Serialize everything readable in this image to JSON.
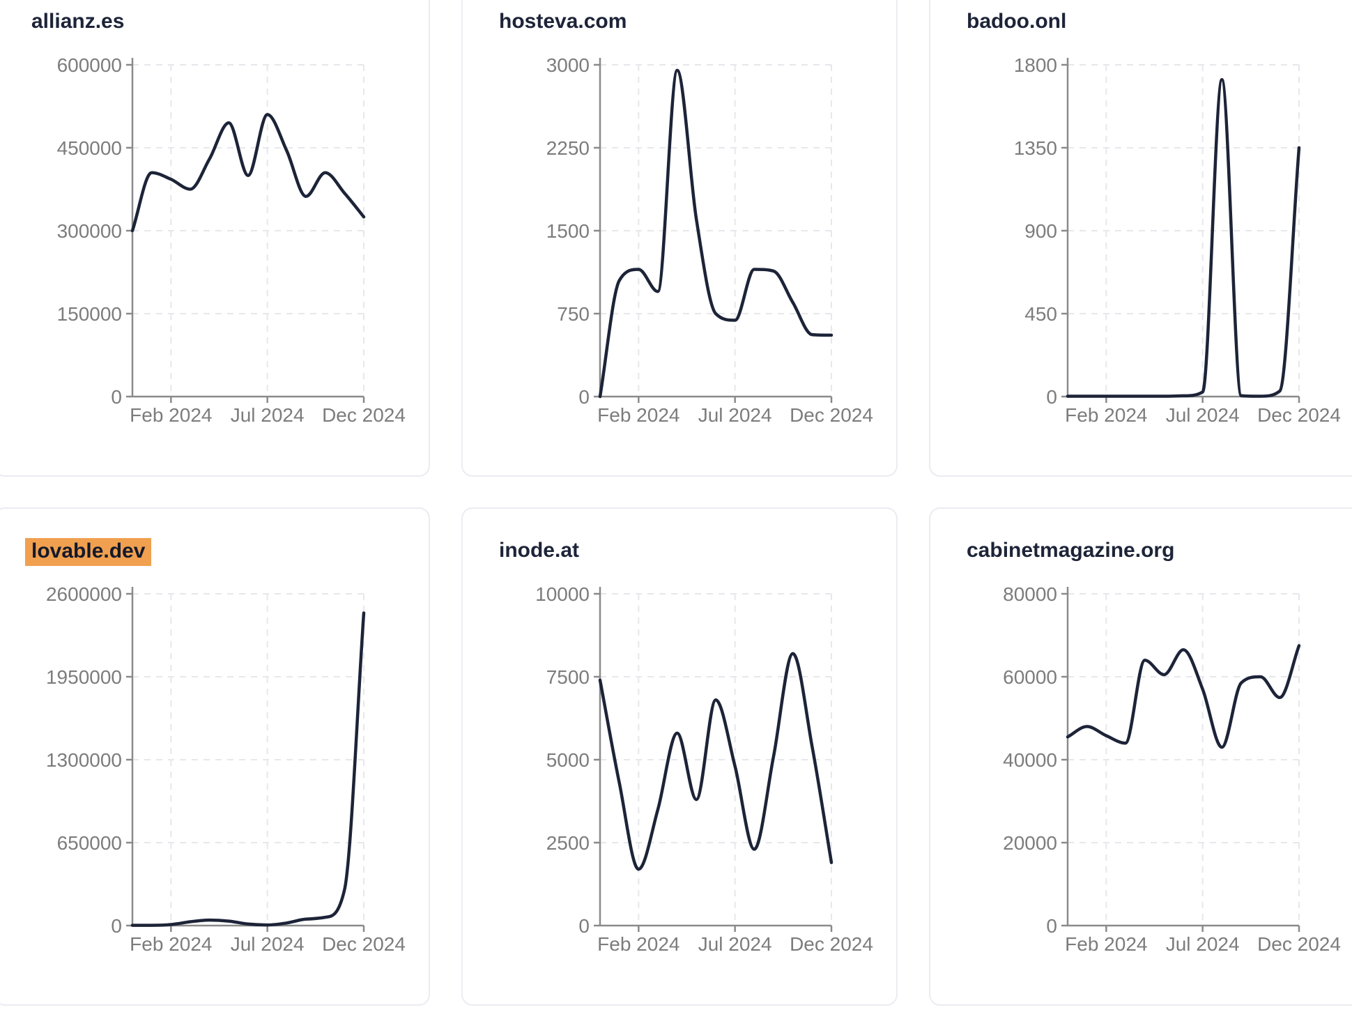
{
  "page": {
    "background": "#ffffff",
    "card_border_color": "#eaecf1",
    "line_color": "#1d2438",
    "title_color": "#1d2438",
    "tick_label_color": "#7c7c7c",
    "axis_color": "#8a8a8a",
    "grid_color": "#e7e7ec",
    "highlight_color": "#f0a04f",
    "highlighted_card": "lovable.dev"
  },
  "x_axis_tick_labels": [
    "Feb 2024",
    "Jul 2024",
    "Dec 2024"
  ],
  "chart_data": [
    {
      "type": "line",
      "title": "allianz.es",
      "highlighted": false,
      "x": [
        "Dec 2023",
        "Jan 2024",
        "Feb 2024",
        "Mar 2024",
        "Apr 2024",
        "May 2024",
        "Jun 2024",
        "Jul 2024",
        "Aug 2024",
        "Sep 2024",
        "Oct 2024",
        "Nov 2024",
        "Dec 2024"
      ],
      "values": [
        300000,
        405000,
        393000,
        375000,
        430000,
        495000,
        400000,
        510000,
        445000,
        362000,
        405000,
        368000,
        325000
      ],
      "ylim": [
        0,
        600000
      ],
      "yticks": [
        0,
        150000,
        300000,
        450000,
        600000
      ],
      "xticks": [
        {
          "index": 2,
          "label": "Feb 2024"
        },
        {
          "index": 7,
          "label": "Jul 2024"
        },
        {
          "index": 12,
          "label": "Dec 2024"
        }
      ],
      "grid": "dashed",
      "legend": "none"
    },
    {
      "type": "line",
      "title": "hosteva.com",
      "highlighted": false,
      "x": [
        "Dec 2023",
        "Jan 2024",
        "Feb 2024",
        "Mar 2024",
        "Apr 2024",
        "May 2024",
        "Jun 2024",
        "Jul 2024",
        "Aug 2024",
        "Sep 2024",
        "Oct 2024",
        "Nov 2024",
        "Dec 2024"
      ],
      "values": [
        0,
        1050,
        1150,
        950,
        2950,
        1600,
        750,
        690,
        1150,
        1135,
        850,
        560,
        555
      ],
      "ylim": [
        0,
        3000
      ],
      "yticks": [
        0,
        750,
        1500,
        2250,
        3000
      ],
      "xticks": [
        {
          "index": 2,
          "label": "Feb 2024"
        },
        {
          "index": 7,
          "label": "Jul 2024"
        },
        {
          "index": 12,
          "label": "Dec 2024"
        }
      ],
      "grid": "dashed",
      "legend": "none"
    },
    {
      "type": "line",
      "title": "badoo.onl",
      "highlighted": false,
      "x": [
        "Dec 2023",
        "Jan 2024",
        "Feb 2024",
        "Mar 2024",
        "Apr 2024",
        "May 2024",
        "Jun 2024",
        "Jul 2024",
        "Aug 2024",
        "Sep 2024",
        "Oct 2024",
        "Nov 2024",
        "Dec 2024"
      ],
      "values": [
        2,
        2,
        2,
        2,
        2,
        2,
        4,
        25,
        1720,
        5,
        2,
        30,
        1350
      ],
      "ylim": [
        0,
        1800
      ],
      "yticks": [
        0,
        450,
        900,
        1350,
        1800
      ],
      "xticks": [
        {
          "index": 2,
          "label": "Feb 2024"
        },
        {
          "index": 7,
          "label": "Jul 2024"
        },
        {
          "index": 12,
          "label": "Dec 2024"
        }
      ],
      "grid": "dashed",
      "legend": "none"
    },
    {
      "type": "line",
      "title": "lovable.dev",
      "highlighted": true,
      "x": [
        "Dec 2023",
        "Jan 2024",
        "Feb 2024",
        "Mar 2024",
        "Apr 2024",
        "May 2024",
        "Jun 2024",
        "Jul 2024",
        "Aug 2024",
        "Sep 2024",
        "Oct 2024",
        "Nov 2024",
        "Dec 2024"
      ],
      "values": [
        2000,
        2000,
        8000,
        30000,
        43000,
        35000,
        12000,
        5000,
        20000,
        50000,
        65000,
        280000,
        2450000
      ],
      "ylim": [
        0,
        2600000
      ],
      "yticks": [
        0,
        650000,
        1300000,
        1950000,
        2600000
      ],
      "xticks": [
        {
          "index": 2,
          "label": "Feb 2024"
        },
        {
          "index": 7,
          "label": "Jul 2024"
        },
        {
          "index": 12,
          "label": "Dec 2024"
        }
      ],
      "grid": "dashed",
      "legend": "none"
    },
    {
      "type": "line",
      "title": "inode.at",
      "highlighted": false,
      "x": [
        "Dec 2023",
        "Jan 2024",
        "Feb 2024",
        "Mar 2024",
        "Apr 2024",
        "May 2024",
        "Jun 2024",
        "Jul 2024",
        "Aug 2024",
        "Sep 2024",
        "Oct 2024",
        "Nov 2024",
        "Dec 2024"
      ],
      "values": [
        7400,
        4300,
        1700,
        3500,
        5800,
        3800,
        6800,
        4800,
        2300,
        5100,
        8200,
        5400,
        1900
      ],
      "ylim": [
        0,
        10000
      ],
      "yticks": [
        0,
        2500,
        5000,
        7500,
        10000
      ],
      "xticks": [
        {
          "index": 2,
          "label": "Feb 2024"
        },
        {
          "index": 7,
          "label": "Jul 2024"
        },
        {
          "index": 12,
          "label": "Dec 2024"
        }
      ],
      "grid": "dashed",
      "legend": "none"
    },
    {
      "type": "line",
      "title": "cabinetmagazine.org",
      "highlighted": false,
      "x": [
        "Dec 2023",
        "Jan 2024",
        "Feb 2024",
        "Mar 2024",
        "Apr 2024",
        "May 2024",
        "Jun 2024",
        "Jul 2024",
        "Aug 2024",
        "Sep 2024",
        "Oct 2024",
        "Nov 2024",
        "Dec 2024"
      ],
      "values": [
        45500,
        48000,
        45800,
        44000,
        64000,
        60500,
        66500,
        57000,
        43000,
        58500,
        60000,
        55000,
        67500
      ],
      "ylim": [
        0,
        80000
      ],
      "yticks": [
        0,
        20000,
        40000,
        60000,
        80000
      ],
      "xticks": [
        {
          "index": 2,
          "label": "Feb 2024"
        },
        {
          "index": 7,
          "label": "Jul 2024"
        },
        {
          "index": 12,
          "label": "Dec 2024"
        }
      ],
      "grid": "dashed",
      "legend": "none"
    }
  ]
}
